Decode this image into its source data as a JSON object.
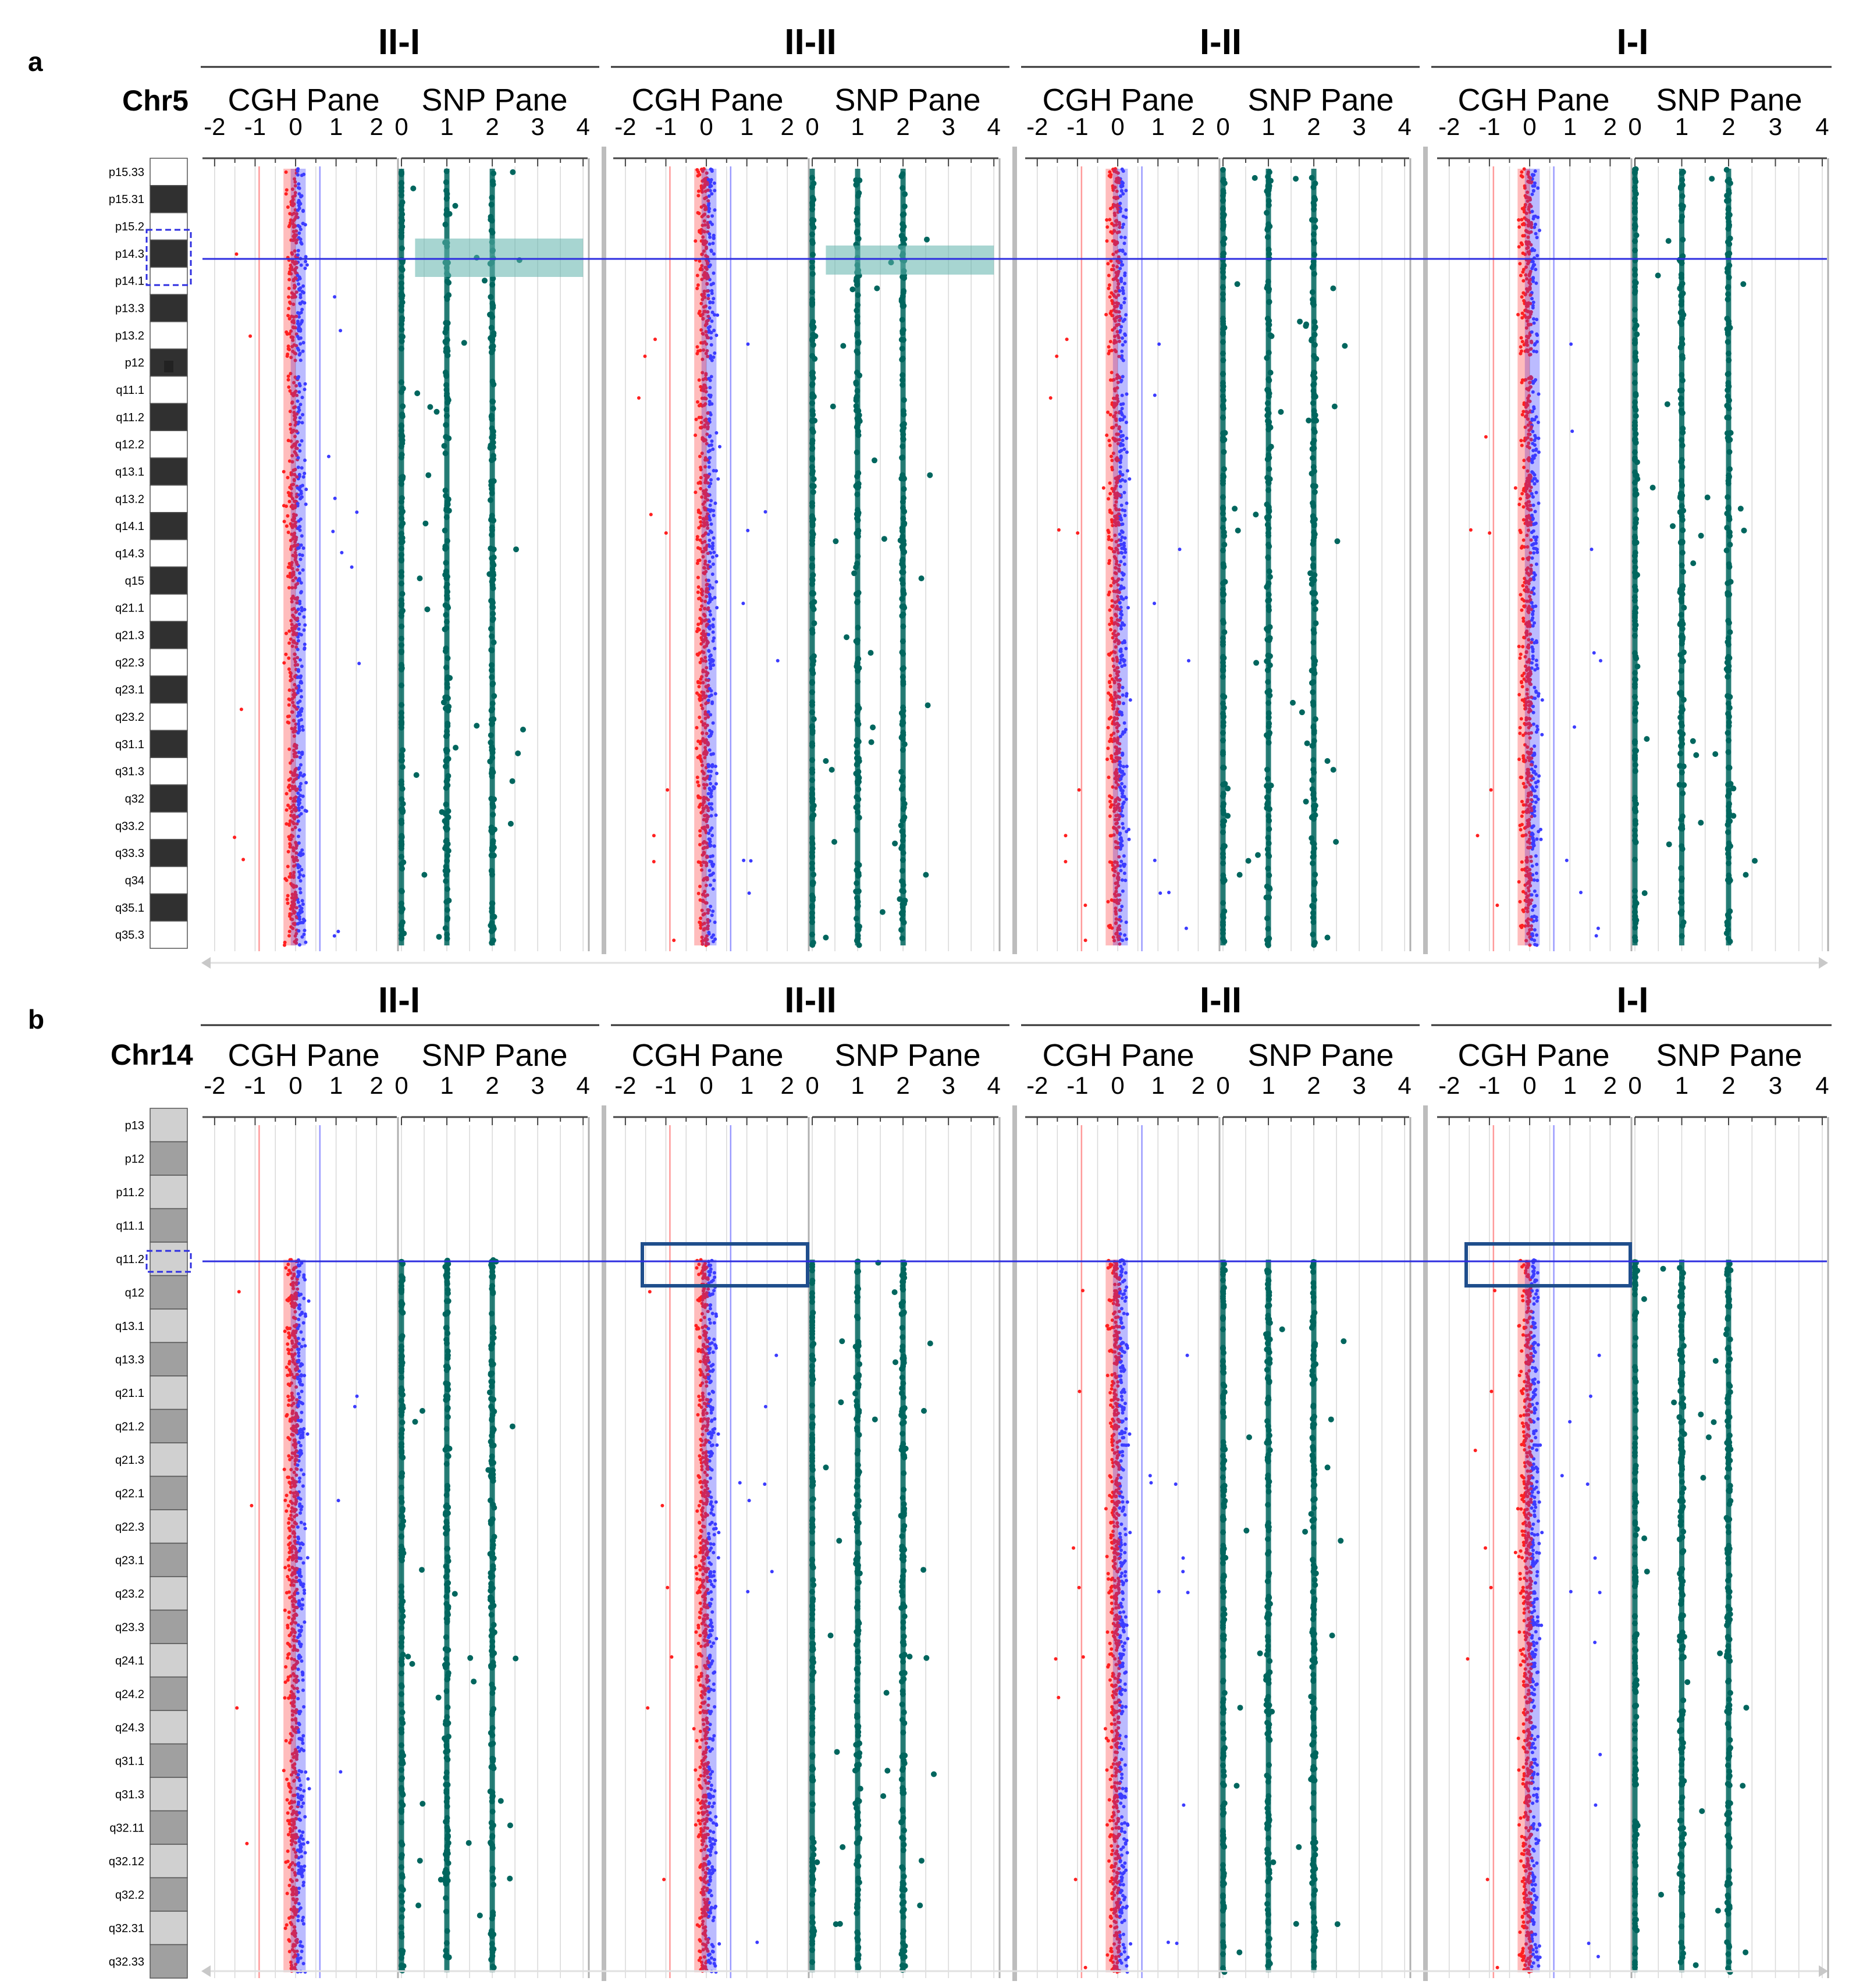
{
  "figure": {
    "colors": {
      "cgh_low": "#ff2020",
      "cgh_high": "#3c3cff",
      "snp": "#00665e",
      "highlight": "#5fb3ac",
      "threshold_neg": "#ff9a9a",
      "threshold_pos": "#9a9aff",
      "marker_line": "#2e2ee0",
      "box_outline": "#1f4e8c",
      "grid": "#d8d8d8"
    },
    "cgh_ticks": [
      "-2",
      "-1",
      "0",
      "1",
      "2"
    ],
    "snp_ticks": [
      "0",
      "1",
      "2",
      "3",
      "4"
    ],
    "cgh_range": [
      -2.3,
      2.5
    ],
    "snp_range": [
      0,
      4.1
    ],
    "cgh_thresholds": [
      -0.9,
      0.6
    ],
    "snp_tracks": [
      0,
      1,
      2
    ],
    "panels": [
      {
        "letter": "a",
        "chromosome": "Chr5",
        "samples": [
          {
            "title": "II-I",
            "cgh_title": "CGH Pane",
            "snp_title": "SNP Pane",
            "snp_highlight": [
              0.3,
              4.0
            ]
          },
          {
            "title": "II-II",
            "cgh_title": "CGH Pane",
            "snp_title": "SNP Pane",
            "snp_highlight": [
              0.3,
              4.0
            ]
          },
          {
            "title": "I-II",
            "cgh_title": "CGH Pane",
            "snp_title": "SNP Pane",
            "snp_highlight": null
          },
          {
            "title": "I-I",
            "cgh_title": "CGH Pane",
            "snp_title": "SNP Pane",
            "snp_highlight": null
          }
        ],
        "bands": [
          "p15.33",
          "p15.31",
          "p15.2",
          "p14.3",
          "p14.1",
          "p13.3",
          "p13.2",
          "p12",
          "q11.1",
          "q11.2",
          "q12.2",
          "q13.1",
          "q13.2",
          "q14.1",
          "q14.3",
          "q15",
          "q21.1",
          "q21.3",
          "q22.3",
          "q23.1",
          "q23.2",
          "q31.1",
          "q31.3",
          "q32",
          "q33.2",
          "q33.3",
          "q34",
          "q35.1",
          "q35.3"
        ]
      },
      {
        "letter": "b",
        "chromosome": "Chr14",
        "samples": [
          {
            "title": "II-I",
            "cgh_title": "CGH Pane",
            "snp_title": "SNP Pane",
            "cgh_box": false
          },
          {
            "title": "II-II",
            "cgh_title": "CGH Pane",
            "snp_title": "SNP Pane",
            "cgh_box": true
          },
          {
            "title": "I-II",
            "cgh_title": "CGH Pane",
            "snp_title": "SNP Pane",
            "cgh_box": false
          },
          {
            "title": "I-I",
            "cgh_title": "CGH Pane",
            "snp_title": "SNP Pane",
            "cgh_box": true
          }
        ],
        "bands": [
          "p13",
          "p12",
          "p11.2",
          "q11.1",
          "q11.2",
          "q12",
          "q13.1",
          "q13.3",
          "q21.1",
          "q21.2",
          "q21.3",
          "q22.1",
          "q22.3",
          "q23.1",
          "q23.2",
          "q23.3",
          "q24.1",
          "q24.2",
          "q24.3",
          "q31.1",
          "q31.3",
          "q32.11",
          "q32.12",
          "q32.2",
          "q32.31",
          "q32.33"
        ]
      }
    ]
  }
}
